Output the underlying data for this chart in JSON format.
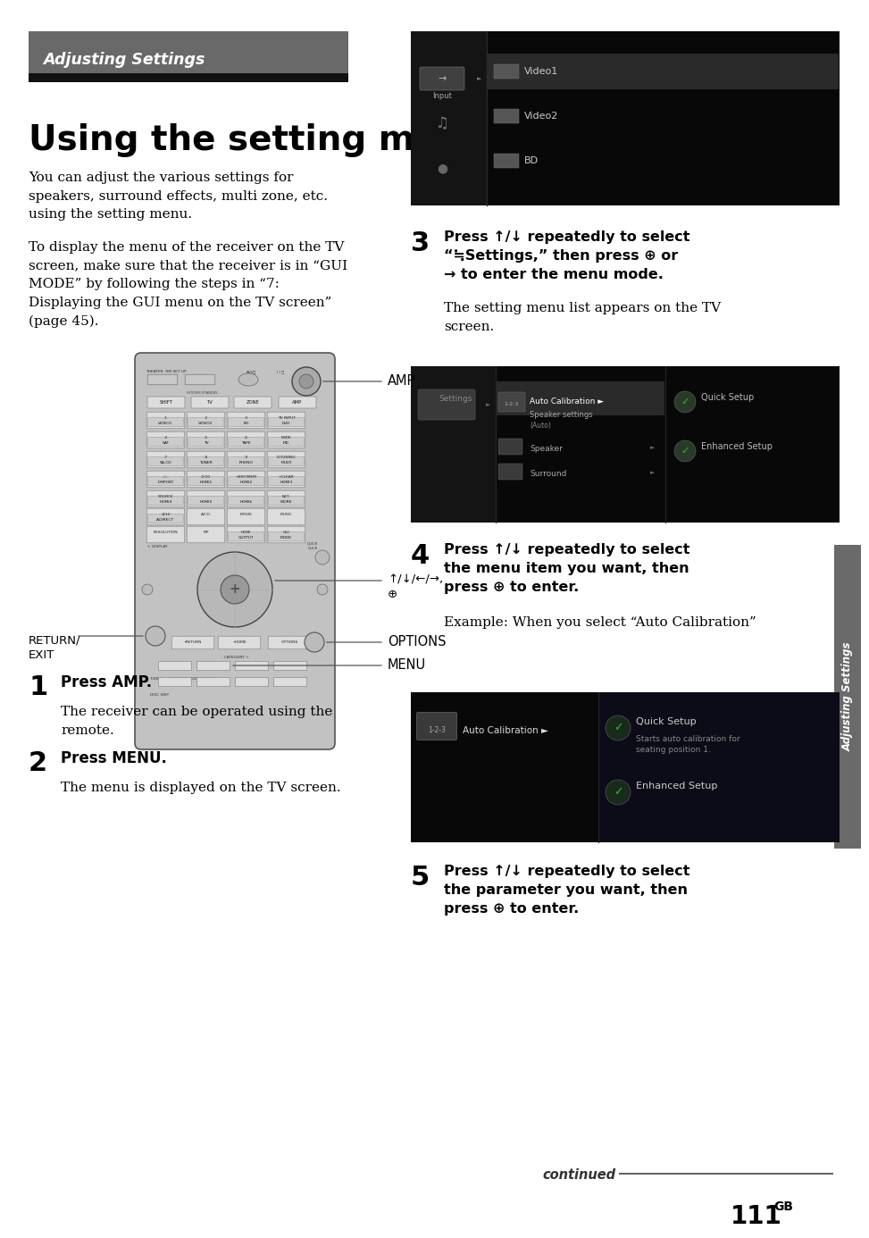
{
  "page_bg": "#ffffff",
  "header_bg": "#696969",
  "header_black_bar": "#111111",
  "header_text": "Adjusting Settings",
  "header_text_color": "#ffffff",
  "title": "Using the setting menu",
  "body_text_color": "#000000",
  "sidebar_bg": "#6a6a6a",
  "sidebar_text": "Adjusting Settings",
  "sidebar_text_color": "#ffffff",
  "footer_continued_text": "continued",
  "footer_page_num": "111",
  "footer_page_suffix": "GB",
  "intro_para1": "You can adjust the various settings for\nspeakers, surround effects, multi zone, etc.\nusing the setting menu.",
  "intro_para2": "To display the menu of the receiver on the TV\nscreen, make sure that the receiver is in “GUI\nMODE” by following the steps in “7:\nDisplaying the GUI menu on the TV screen”\n(page 45).",
  "step1_num": "1",
  "step1_title": "Press AMP.",
  "step1_body": "The receiver can be operated using the\nremote.",
  "step2_num": "2",
  "step2_title": "Press MENU.",
  "step2_body": "The menu is displayed on the TV screen.",
  "step3_num": "3",
  "step3_title": "Press ↑/↓ repeatedly to select\n“≒Settings,” then press ⊕ or\n→ to enter the menu mode.",
  "step3_body": "The setting menu list appears on the TV\nscreen.",
  "step4_num": "4",
  "step4_title": "Press ↑/↓ repeatedly to select\nthe menu item you want, then\npress ⊕ to enter.",
  "step4_body": "Example: When you select “Auto Calibration”",
  "step5_num": "5",
  "step5_title": "Press ↑/↓ repeatedly to select\nthe parameter you want, then\npress ⊕ to enter.",
  "amp_label": "AMP",
  "arrows_label": "↑/↓/←/→,\n⊕",
  "options_label": "OPTIONS",
  "return_label": "RETURN/\nEXIT",
  "menu_label": "MENU",
  "remote_bg": "#c2c2c2",
  "remote_edge": "#555555",
  "btn_bg": "#dddddd",
  "btn_edge": "#777777"
}
